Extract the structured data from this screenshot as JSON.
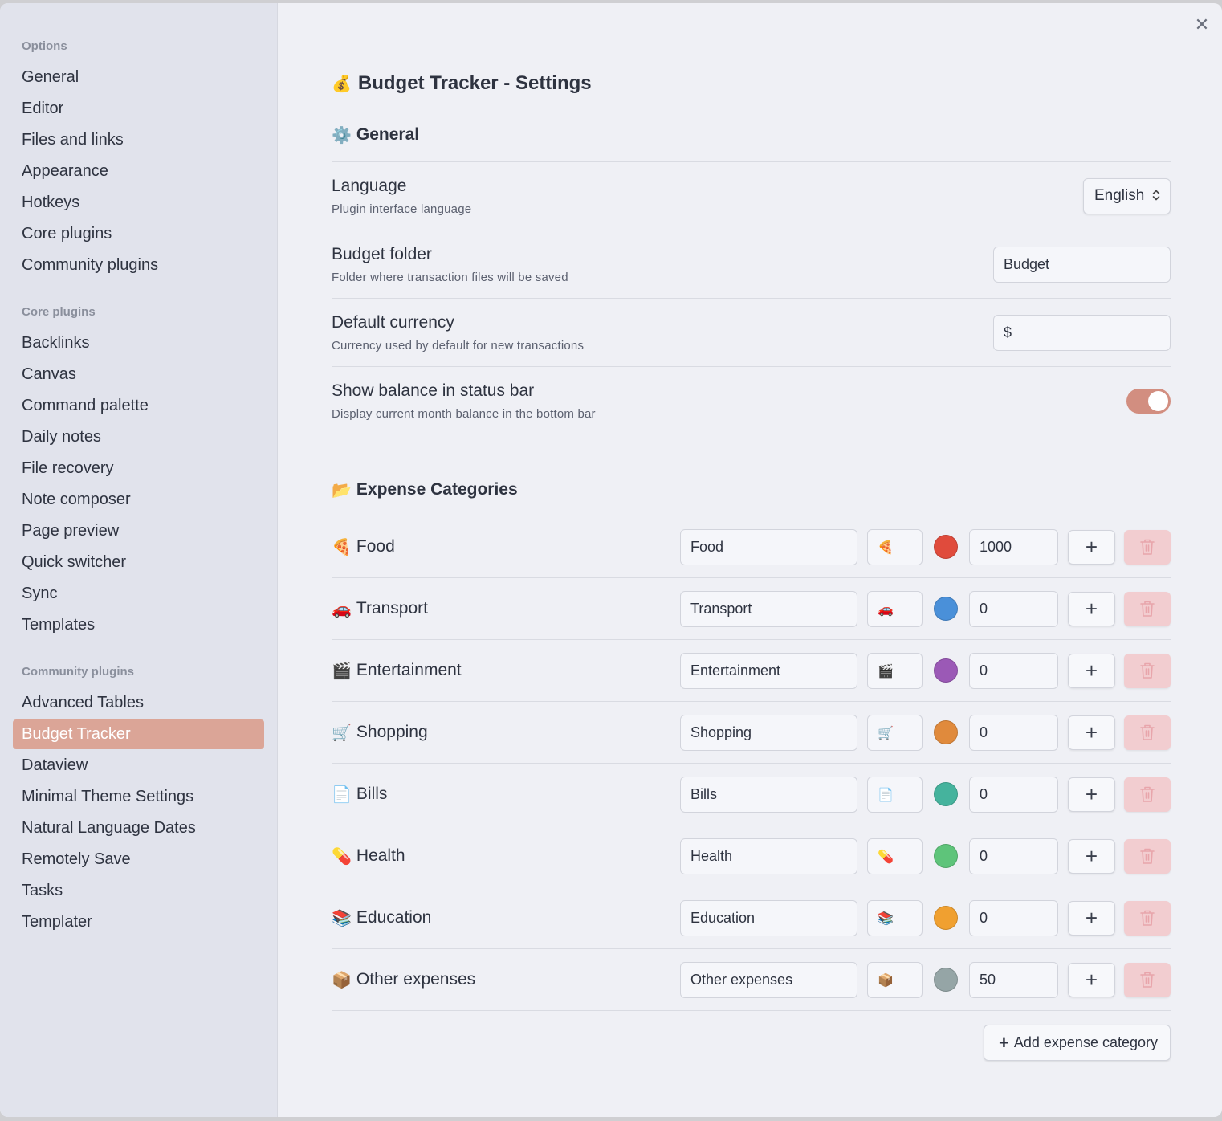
{
  "sidebar": {
    "groups": [
      {
        "heading": "Options",
        "items": [
          "General",
          "Editor",
          "Files and links",
          "Appearance",
          "Hotkeys",
          "Core plugins",
          "Community plugins"
        ]
      },
      {
        "heading": "Core plugins",
        "items": [
          "Backlinks",
          "Canvas",
          "Command palette",
          "Daily notes",
          "File recovery",
          "Note composer",
          "Page preview",
          "Quick switcher",
          "Sync",
          "Templates"
        ]
      },
      {
        "heading": "Community plugins",
        "items": [
          "Advanced Tables",
          "Budget Tracker",
          "Dataview",
          "Minimal Theme Settings",
          "Natural Language Dates",
          "Remotely Save",
          "Tasks",
          "Templater"
        ]
      }
    ],
    "active_item": "Budget Tracker"
  },
  "page": {
    "title_emoji": "💰",
    "title": "Budget Tracker - Settings",
    "general_emoji": "⚙️",
    "general_title": "General",
    "expense_emoji": "📂",
    "expense_title": "Expense Categories",
    "close_glyph": "✕"
  },
  "general": {
    "language": {
      "name": "Language",
      "desc": "Plugin interface language",
      "value": "English"
    },
    "budget_folder": {
      "name": "Budget folder",
      "desc": "Folder where transaction files will be saved",
      "value": "Budget"
    },
    "default_currency": {
      "name": "Default currency",
      "desc": "Currency used by default for new transactions",
      "value": "$"
    },
    "status_bar": {
      "name": "Show balance in status bar",
      "desc": "Display current month balance in the bottom bar",
      "enabled": true
    }
  },
  "categories": [
    {
      "emoji": "🍕",
      "label": "Food",
      "name": "Food",
      "color": "#e04b3c",
      "budget": "1000"
    },
    {
      "emoji": "🚗",
      "label": "Transport",
      "name": "Transport",
      "color": "#4a90d9",
      "budget": "0"
    },
    {
      "emoji": "🎬",
      "label": "Entertainment",
      "name": "Entertainment",
      "color": "#9b59b6",
      "budget": "0"
    },
    {
      "emoji": "🛒",
      "label": "Shopping",
      "name": "Shopping",
      "color": "#e08a3c",
      "budget": "0"
    },
    {
      "emoji": "📄",
      "label": "Bills",
      "name": "Bills",
      "color": "#45b39d",
      "budget": "0"
    },
    {
      "emoji": "💊",
      "label": "Health",
      "name": "Health",
      "color": "#5ec47a",
      "budget": "0"
    },
    {
      "emoji": "📚",
      "label": "Education",
      "name": "Education",
      "color": "#f0a030",
      "budget": "0"
    },
    {
      "emoji": "📦",
      "label": "Other expenses",
      "name": "Other expenses",
      "color": "#95a5a6",
      "budget": "50"
    }
  ],
  "add_category_label": "Add expense category",
  "add_glyph": "+",
  "colors": {
    "accent": "#dba597",
    "toggle_on": "#d28e80",
    "delete_bg": "#f2cdd0",
    "delete_icon": "#e8a5ab"
  }
}
